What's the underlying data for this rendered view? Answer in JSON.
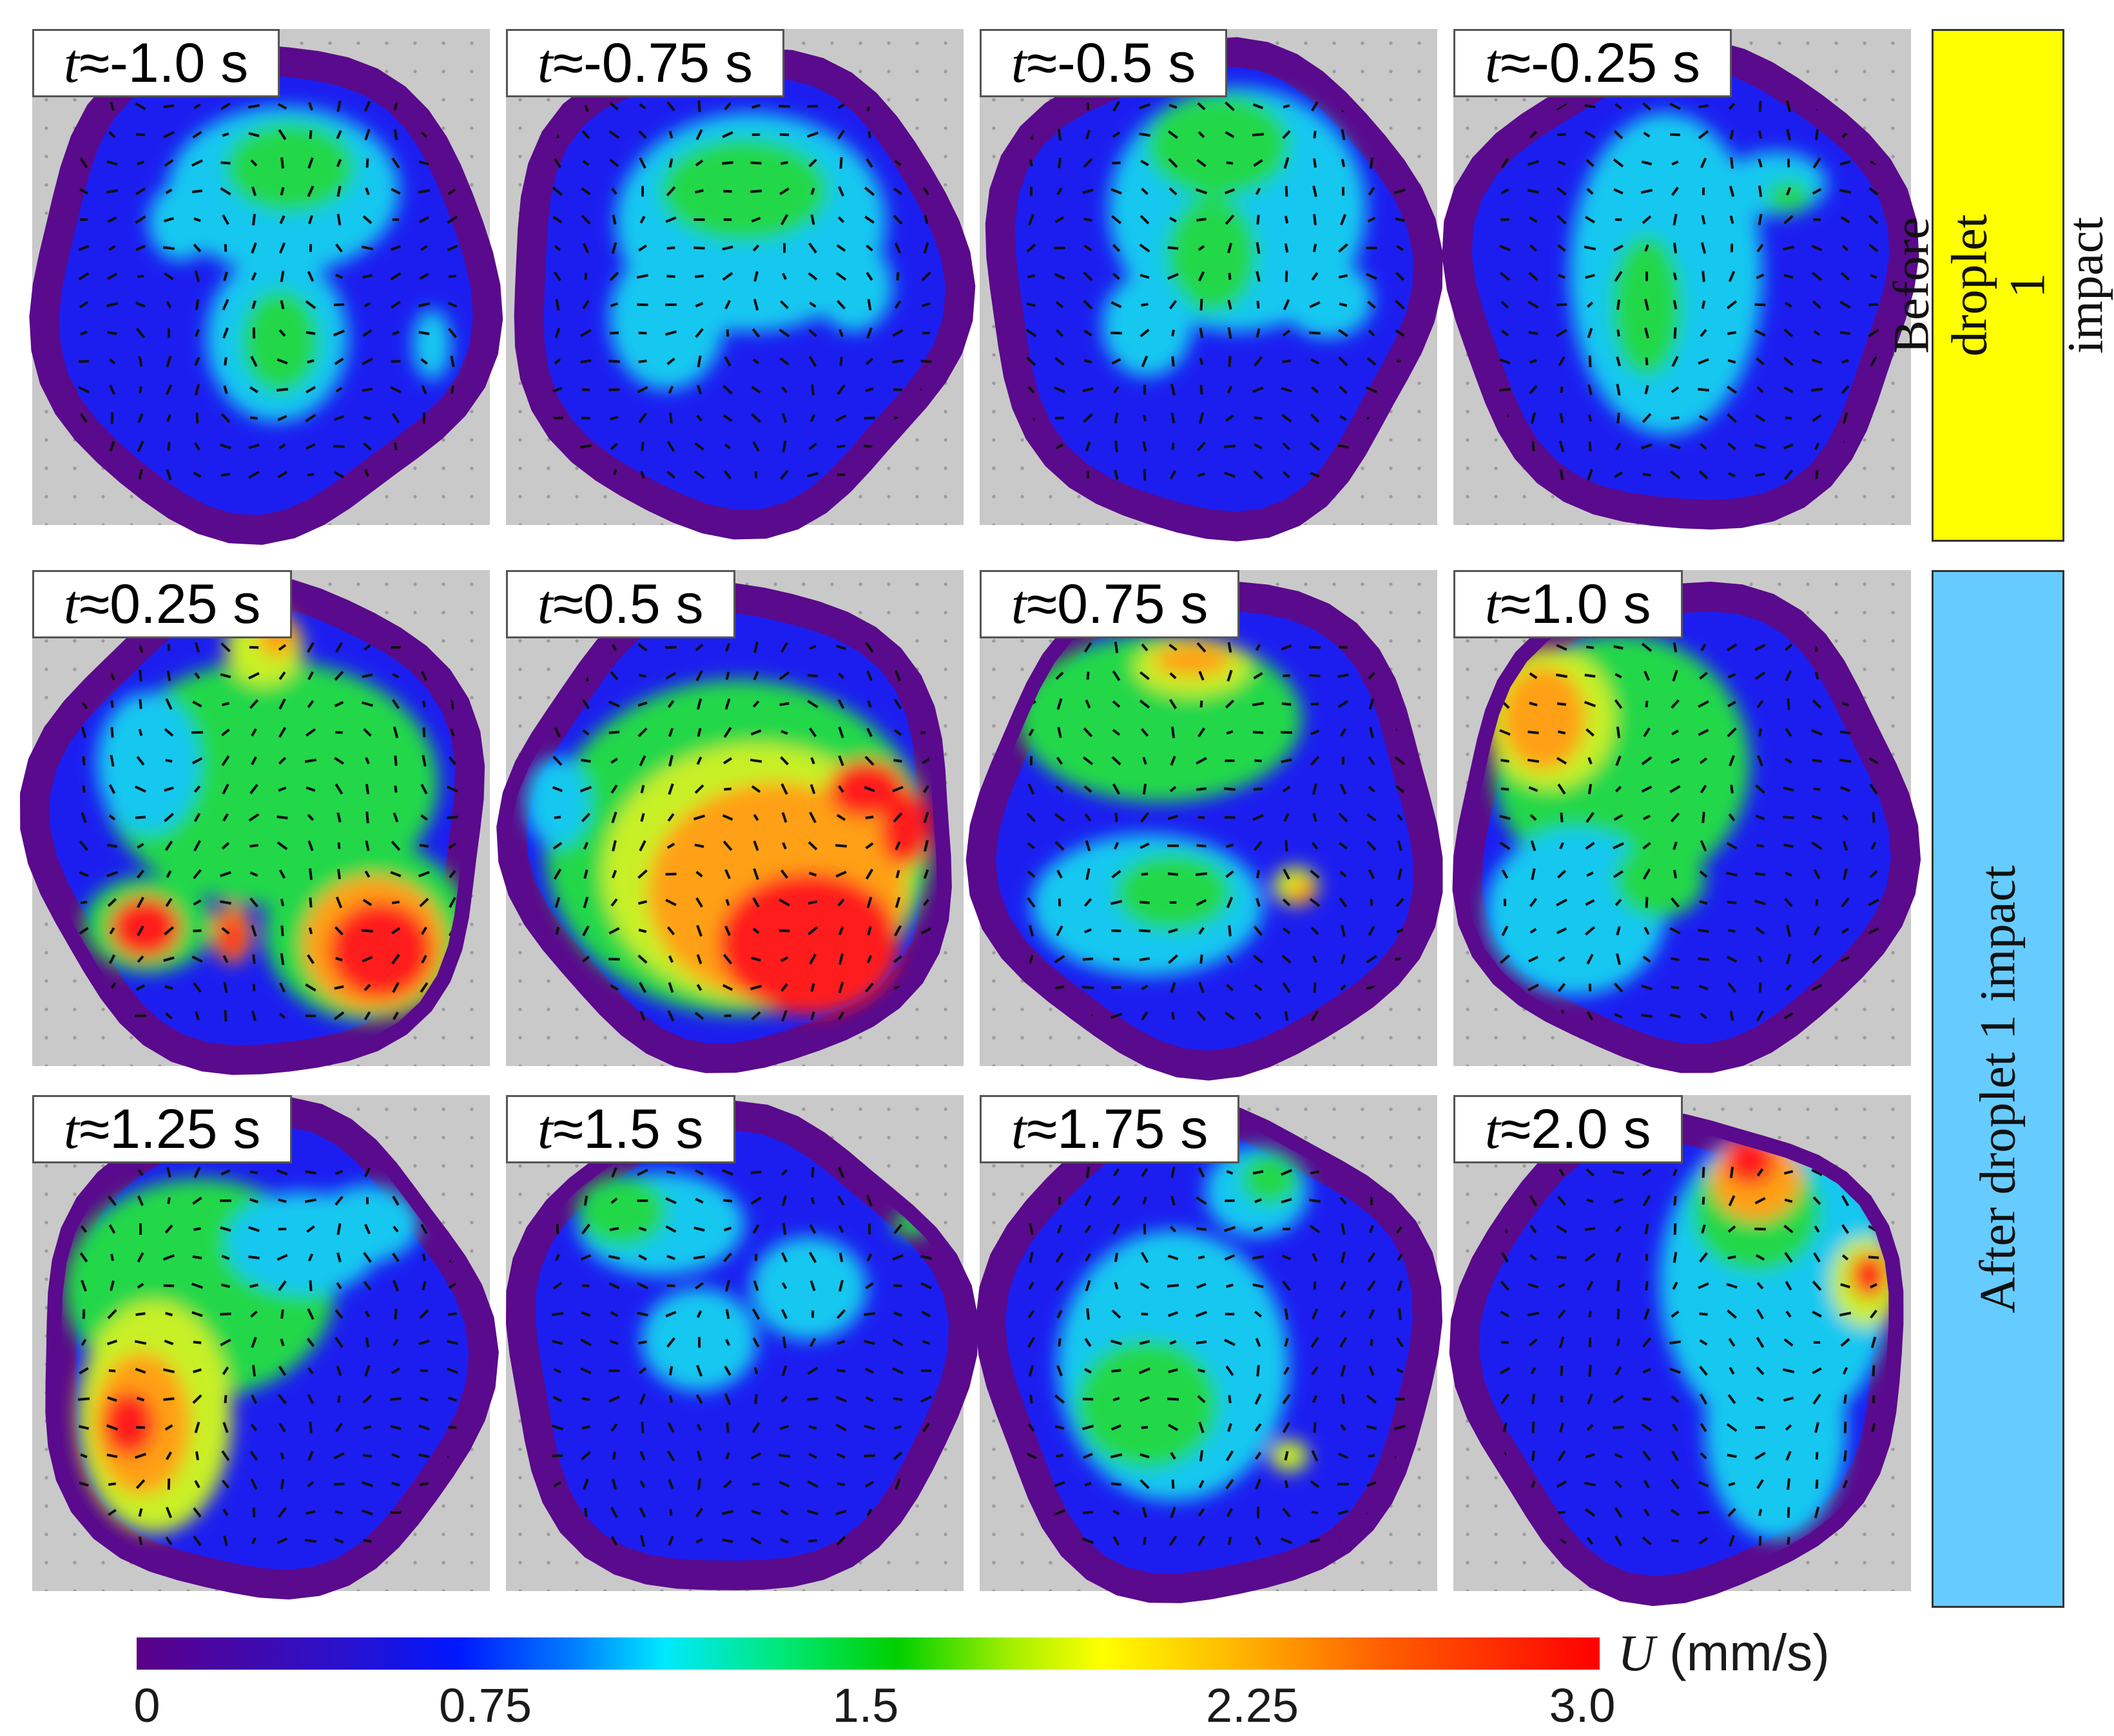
{
  "panels": [
    {
      "label": "t≈-1.0 s",
      "pattern": "scattered-green-center"
    },
    {
      "label": "t≈-0.75 s",
      "pattern": "green-top-center"
    },
    {
      "label": "t≈-0.5 s",
      "pattern": "green-top-center"
    },
    {
      "label": "t≈-0.25 s",
      "pattern": "green-left-center"
    },
    {
      "label": "t≈0.25 s",
      "pattern": "red-left-and-bottom-right"
    },
    {
      "label": "t≈0.5 s",
      "pattern": "red-orange-large-bottom"
    },
    {
      "label": "t≈0.75 s",
      "pattern": "green-top-orange-upper"
    },
    {
      "label": "t≈1.0 s",
      "pattern": "orange-upper-left"
    },
    {
      "label": "t≈1.25 s",
      "pattern": "orange-lower-left"
    },
    {
      "label": "t≈1.5 s",
      "pattern": "mostly-blue"
    },
    {
      "label": "t≈1.75 s",
      "pattern": "green-lower-center"
    },
    {
      "label": "t≈2.0 s",
      "pattern": "red-top-right"
    }
  ],
  "side_labels": {
    "before": "Before droplet 1 impact",
    "after": "After droplet 1 impact"
  },
  "colorbar": {
    "variable": "U",
    "unit": " (mm/s)",
    "ticks": [
      "0",
      "0.75",
      "1.5",
      "2.25",
      "3.0"
    ],
    "min": 0,
    "max": 3.0,
    "colors": [
      "#5c0087",
      "#0018ff",
      "#00e8ff",
      "#00d000",
      "#ffff00",
      "#ff6000",
      "#ff0000"
    ]
  },
  "colors": {
    "before_box": "#ffff00",
    "after_box": "#66ccff"
  }
}
